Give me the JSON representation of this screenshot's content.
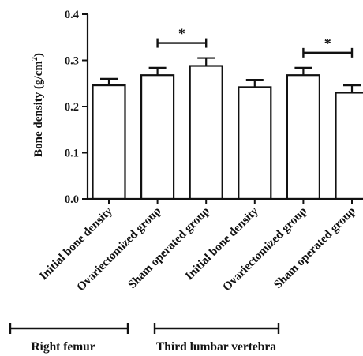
{
  "chart_data": {
    "type": "bar",
    "title": "",
    "ylabel": "Bone density (g/cm²)",
    "ylabel_parts": [
      "Bone density (g/cm",
      "2",
      ")"
    ],
    "ylim": [
      0.0,
      0.4
    ],
    "yticks": [
      0.0,
      0.1,
      0.2,
      0.3,
      0.4
    ],
    "ytick_labels": [
      "0.0",
      "0.1",
      "0.2",
      "0.3",
      "0.4"
    ],
    "categories": [
      "Initial bone density",
      "Ovariectomized group",
      "Sham operated group",
      "Initial bone density",
      "Ovariectomized group",
      "Sham operated group"
    ],
    "values": [
      0.246,
      0.268,
      0.288,
      0.242,
      0.268,
      0.23
    ],
    "errors": [
      0.014,
      0.016,
      0.017,
      0.016,
      0.016,
      0.016
    ],
    "significance": [
      {
        "from": 1,
        "to": 2,
        "label": "*"
      },
      {
        "from": 4,
        "to": 5,
        "label": "*"
      }
    ],
    "groups": [
      {
        "label": "Right femur",
        "from": 0,
        "to": 2
      },
      {
        "label": "Third lumbar vertebra",
        "from": 3,
        "to": 5
      }
    ],
    "grid": false
  }
}
